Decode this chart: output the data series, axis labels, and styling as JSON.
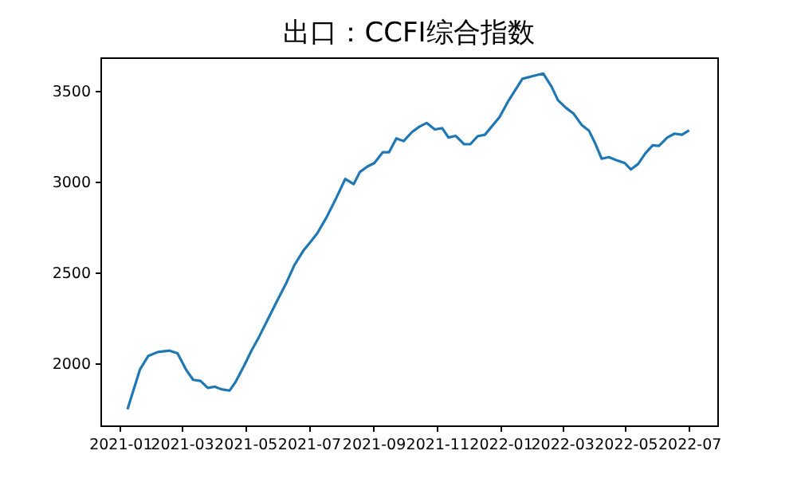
{
  "chart_data": {
    "type": "line",
    "title": "出口：CCFI综合指数",
    "x": [
      "2021-01-08",
      "2021-01-20",
      "2021-01-28",
      "2021-02-06",
      "2021-02-17",
      "2021-02-25",
      "2021-03-05",
      "2021-03-12",
      "2021-03-19",
      "2021-03-26",
      "2021-04-02",
      "2021-04-08",
      "2021-04-16",
      "2021-04-22",
      "2021-04-30",
      "2021-05-07",
      "2021-05-14",
      "2021-05-23",
      "2021-06-01",
      "2021-06-09",
      "2021-06-17",
      "2021-06-26",
      "2021-07-03",
      "2021-07-09",
      "2021-07-18",
      "2021-07-27",
      "2021-08-05",
      "2021-08-13",
      "2021-08-19",
      "2021-08-26",
      "2021-09-02",
      "2021-09-10",
      "2021-09-16",
      "2021-09-23",
      "2021-09-30",
      "2021-10-08",
      "2021-10-15",
      "2021-10-22",
      "2021-10-30",
      "2021-11-06",
      "2021-11-12",
      "2021-11-19",
      "2021-11-27",
      "2021-12-03",
      "2021-12-10",
      "2021-12-17",
      "2021-12-31",
      "2022-01-09",
      "2022-01-22",
      "2022-02-01",
      "2022-02-11",
      "2022-02-19",
      "2022-02-25",
      "2022-03-05",
      "2022-03-12",
      "2022-03-20",
      "2022-03-27",
      "2022-04-02",
      "2022-04-08",
      "2022-04-15",
      "2022-04-22",
      "2022-04-30",
      "2022-05-06",
      "2022-05-13",
      "2022-05-20",
      "2022-05-27",
      "2022-06-02",
      "2022-06-10",
      "2022-06-17",
      "2022-06-24",
      "2022-07-01"
    ],
    "series": [
      {
        "color": "#1f77b4",
        "values": [
          1747,
          1967,
          2041,
          2062,
          2070,
          2055,
          1967,
          1909,
          1903,
          1865,
          1871,
          1857,
          1850,
          1900,
          1988,
          2070,
          2143,
          2246,
          2349,
          2437,
          2539,
          2622,
          2671,
          2715,
          2803,
          2906,
          3015,
          2986,
          3053,
          3082,
          3103,
          3162,
          3162,
          3238,
          3223,
          3273,
          3302,
          3323,
          3287,
          3294,
          3243,
          3252,
          3206,
          3206,
          3250,
          3258,
          3355,
          3449,
          3566,
          3581,
          3595,
          3522,
          3449,
          3405,
          3375,
          3311,
          3279,
          3208,
          3126,
          3135,
          3118,
          3103,
          3067,
          3097,
          3156,
          3200,
          3197,
          3243,
          3264,
          3258,
          3282
        ]
      }
    ],
    "xlim": [
      "2020-12-13",
      "2022-07-28"
    ],
    "xticks": [
      {
        "value": "2021-01-01",
        "label": "2021-01"
      },
      {
        "value": "2021-03-01",
        "label": "2021-03"
      },
      {
        "value": "2021-05-01",
        "label": "2021-05"
      },
      {
        "value": "2021-07-01",
        "label": "2021-07"
      },
      {
        "value": "2021-09-01",
        "label": "2021-09"
      },
      {
        "value": "2021-11-01",
        "label": "2021-11"
      },
      {
        "value": "2022-01-01",
        "label": "2022-01"
      },
      {
        "value": "2022-03-01",
        "label": "2022-03"
      },
      {
        "value": "2022-05-01",
        "label": "2022-05"
      },
      {
        "value": "2022-07-01",
        "label": "2022-07"
      }
    ],
    "ylim": [
      1658,
      3684
    ],
    "yticks": [
      2000,
      2500,
      3000,
      3500
    ],
    "grid": false,
    "marker": "none",
    "line_style": "solid"
  }
}
